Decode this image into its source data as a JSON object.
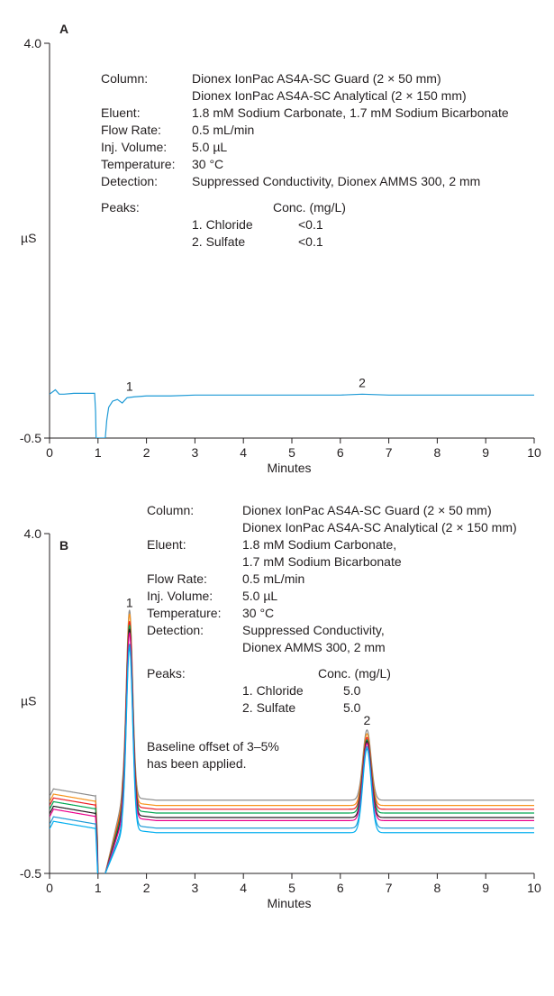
{
  "chart_data": [
    {
      "type": "line",
      "panel_label": "A",
      "xlabel": "Minutes",
      "ylabel": "µS",
      "xlim": [
        0,
        10
      ],
      "ylim": [
        -0.5,
        4.0
      ],
      "x_ticks": [
        0,
        1,
        2,
        3,
        4,
        5,
        6,
        7,
        8,
        9,
        10
      ],
      "y_ticks": [
        -0.5,
        4.0
      ],
      "y_tick_labels": [
        "-0.5",
        "4.0"
      ],
      "grid": false,
      "info": [
        {
          "label": "Column:",
          "value": "Dionex IonPac AS4A-SC Guard (2 × 50 mm)"
        },
        {
          "label": "",
          "value": "Dionex IonPac AS4A-SC Analytical (2 × 150 mm)"
        },
        {
          "label": "Eluent:",
          "value": "1.8 mM Sodium Carbonate, 1.7 mM Sodium Bicarbonate"
        },
        {
          "label": "Flow Rate:",
          "value": "0.5 mL/min"
        },
        {
          "label": "Inj. Volume:",
          "value": "5.0 µL"
        },
        {
          "label": "Temperature:",
          "value": "30 °C"
        },
        {
          "label": "Detection:",
          "value": "Suppressed Conductivity, Dionex AMMS 300, 2 mm"
        }
      ],
      "peaks_label": "Peaks:",
      "conc_header": "Conc. (mg/L)",
      "peaks": [
        {
          "name": "1. Chloride",
          "conc": "<0.1"
        },
        {
          "name": "2. Sulfate",
          "conc": "<0.1"
        }
      ],
      "peak_markers": [
        {
          "label": "1",
          "x": 1.65,
          "y": 0.04
        },
        {
          "label": "2",
          "x": 6.45,
          "y": 0.08
        }
      ],
      "series": [
        {
          "color": "#1e9ad6",
          "x": [
            0,
            0.12,
            0.2,
            0.3,
            0.5,
            0.8,
            0.93,
            0.95,
            0.96,
            0.97,
            1.15,
            1.18,
            1.22,
            1.3,
            1.4,
            1.5,
            1.6,
            1.75,
            2,
            2.5,
            3,
            4,
            5,
            6,
            6.45,
            7,
            8,
            9,
            10
          ],
          "y": [
            0.0,
            0.05,
            0.0,
            0.0,
            0.01,
            0.01,
            0.01,
            -0.2,
            -0.5,
            -0.5,
            -0.5,
            -0.3,
            -0.15,
            -0.08,
            -0.06,
            -0.1,
            -0.04,
            -0.03,
            -0.02,
            -0.02,
            -0.01,
            -0.01,
            -0.01,
            -0.01,
            0.0,
            -0.01,
            -0.01,
            -0.01,
            -0.01
          ]
        }
      ]
    },
    {
      "type": "line",
      "panel_label": "B",
      "xlabel": "Minutes",
      "ylabel": "µS",
      "xlim": [
        0,
        10
      ],
      "ylim": [
        -0.5,
        4.0
      ],
      "x_ticks": [
        0,
        1,
        2,
        3,
        4,
        5,
        6,
        7,
        8,
        9,
        10
      ],
      "y_ticks": [
        -0.5,
        4.0
      ],
      "y_tick_labels": [
        "-0.5",
        "4.0"
      ],
      "grid": false,
      "info": [
        {
          "label": "Column:",
          "value": "Dionex IonPac AS4A-SC Guard (2 × 50 mm)"
        },
        {
          "label": "",
          "value": "Dionex IonPac AS4A-SC Analytical (2 × 150 mm)"
        },
        {
          "label": "Eluent:",
          "value": "1.8 mM Sodium Carbonate,"
        },
        {
          "label": "",
          "value": "1.7 mM Sodium Bicarbonate"
        },
        {
          "label": "Flow Rate:",
          "value": "0.5 mL/min"
        },
        {
          "label": "Inj. Volume:",
          "value": "5.0 µL"
        },
        {
          "label": "Temperature:",
          "value": "30 °C"
        },
        {
          "label": "Detection:",
          "value": "Suppressed Conductivity,"
        },
        {
          "label": "",
          "value": "Dionex AMMS 300, 2 mm"
        }
      ],
      "peaks_label": "Peaks:",
      "conc_header": "Conc. (mg/L)",
      "peaks": [
        {
          "name": "1. Chloride",
          "conc": "5.0"
        },
        {
          "name": "2. Sulfate",
          "conc": "5.0"
        }
      ],
      "note": [
        "Baseline offset of 3–5%",
        "has been applied."
      ],
      "peak_markers": [
        {
          "label": "1",
          "x": 1.65,
          "y": 3.03
        },
        {
          "label": "2",
          "x": 6.55,
          "y": 1.47
        }
      ],
      "series": [
        {
          "color": "#8c8c8c",
          "baseline": 0.47,
          "peak1": 2.95,
          "peak2": 1.4
        },
        {
          "color": "#f7941d",
          "baseline": 0.4,
          "peak1": 2.9,
          "peak2": 1.35
        },
        {
          "color": "#ed1c24",
          "baseline": 0.35,
          "peak1": 2.8,
          "peak2": 1.3
        },
        {
          "color": "#00a651",
          "baseline": 0.3,
          "peak1": 2.75,
          "peak2": 1.27
        },
        {
          "color": "#231f20",
          "baseline": 0.24,
          "peak1": 2.7,
          "peak2": 1.25
        },
        {
          "color": "#ec008c",
          "baseline": 0.2,
          "peak1": 2.65,
          "peak2": 1.22
        },
        {
          "color": "#1e9ad6",
          "baseline": 0.1,
          "peak1": 2.5,
          "peak2": 1.18
        },
        {
          "color": "#00aeef",
          "baseline": 0.04,
          "peak1": 2.45,
          "peak2": 1.15
        }
      ]
    }
  ]
}
